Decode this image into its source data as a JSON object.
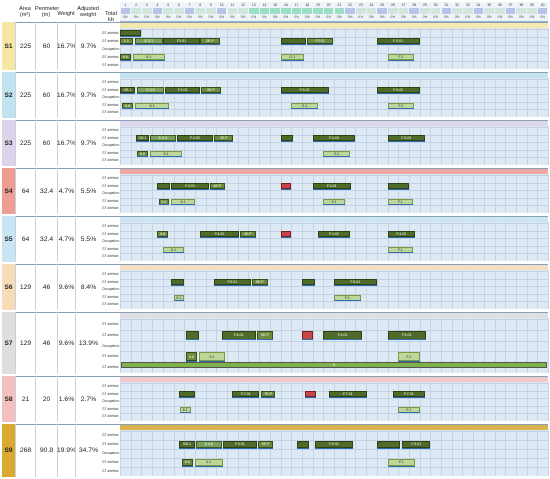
{
  "headers": {
    "area": "Area (m²)",
    "perimeter": "Perimeter (m)",
    "weight": "Weight",
    "adjusted_weight": "Adjusted weight",
    "total_kb": "Total kb"
  },
  "slots": [
    "1",
    "2",
    "3",
    "4",
    "5",
    "6",
    "7",
    "8",
    "9",
    "10",
    "11",
    "12",
    "13",
    "14",
    "15",
    "16",
    "17",
    "18",
    "19",
    "20",
    "21",
    "22",
    "23",
    "24",
    "25",
    "26",
    "27",
    "28",
    "29",
    "30",
    "31",
    "32",
    "33",
    "34",
    "35",
    "36",
    "37",
    "38",
    "39",
    "40"
  ],
  "row_labels": [
    "GT artefact",
    "GT artefact",
    "Occupation (m²)",
    "GT artefact",
    "GT artefact"
  ],
  "pct_label": "0%",
  "colors": {
    "s1": "#f6e7a3",
    "s2": "#bfe4ef",
    "s3": "#ddd3ea",
    "s4": "#ef9c92",
    "s5": "#c9e5f3",
    "s6": "#f8dcb6",
    "s7": "#dedede",
    "s8": "#f3c0bf",
    "s9": "#d9a930",
    "grid": "#dde9f5",
    "header": "#cfe7dd",
    "dark_green": "#4e6b27",
    "olive": "#6e8b3d",
    "blue": "#2f6fb0"
  },
  "sections": [
    {
      "id": "S1",
      "area": "225",
      "perimeter": "60",
      "weight": "16.7%",
      "adjusted": "9.7%"
    },
    {
      "id": "S2",
      "area": "225",
      "perimeter": "60",
      "weight": "16.7%",
      "adjusted": "9.7%"
    },
    {
      "id": "S3",
      "area": "225",
      "perimeter": "60",
      "weight": "16.7%",
      "adjusted": "9.7%"
    },
    {
      "id": "S4",
      "area": "64",
      "perimeter": "32.4",
      "weight": "4.7%",
      "adjusted": "5.5%"
    },
    {
      "id": "S5",
      "area": "64",
      "perimeter": "32.4",
      "weight": "4.7%",
      "adjusted": "5.5%"
    },
    {
      "id": "S6",
      "area": "129",
      "perimeter": "46",
      "weight": "9.6%",
      "adjusted": "8.4%"
    },
    {
      "id": "S7",
      "area": "129",
      "perimeter": "46",
      "weight": "9.6%",
      "adjusted": "13.9%"
    },
    {
      "id": "S8",
      "area": "21",
      "perimeter": "20",
      "weight": "1.6%",
      "adjusted": "2.7%"
    },
    {
      "id": "S9",
      "area": "268",
      "perimeter": "90.8",
      "weight": "19.9%",
      "adjusted": "34.7%"
    }
  ],
  "blocks": [
    {
      "s": 0,
      "r": 0,
      "c": 1,
      "w": 2,
      "t": "",
      "k": "dark"
    },
    {
      "s": 0,
      "r": 1,
      "c": 1,
      "w": 1.2,
      "t": "1.1",
      "k": "olive"
    },
    {
      "s": 0,
      "r": 1,
      "c": 2.4,
      "w": 2.6,
      "t": "E.3.1",
      "k": "mid"
    },
    {
      "s": 0,
      "r": 1,
      "c": 5,
      "w": 3.5,
      "t": "F3.01",
      "k": "dark"
    },
    {
      "s": 0,
      "r": 1,
      "c": 8.5,
      "w": 1.8,
      "t": "2E.P",
      "k": "olive"
    },
    {
      "s": 0,
      "r": 3,
      "c": 1,
      "w": 1,
      "t": "6.6",
      "k": "olive"
    },
    {
      "s": 0,
      "r": 3,
      "c": 2.2,
      "w": 3,
      "t": "6.1",
      "k": "light"
    },
    {
      "s": 0,
      "r": 1,
      "c": 16,
      "w": 2.4,
      "t": "",
      "k": "dark"
    },
    {
      "s": 0,
      "r": 1,
      "c": 18.5,
      "w": 2.4,
      "t": "F3.01",
      "k": "olive"
    },
    {
      "s": 0,
      "r": 3,
      "c": 16,
      "w": 2.2,
      "t": "G.1",
      "k": "light"
    },
    {
      "s": 0,
      "r": 1,
      "c": 25,
      "w": 4,
      "t": "F.3.01",
      "k": "dark"
    },
    {
      "s": 0,
      "r": 3,
      "c": 26,
      "w": 2.5,
      "t": "F.1",
      "k": "light"
    },
    {
      "s": 1,
      "r": 1,
      "c": 1,
      "w": 1.4,
      "t": "GB.1",
      "k": "dark"
    },
    {
      "s": 1,
      "r": 1,
      "c": 2.6,
      "w": 2.5,
      "t": "E.3.2",
      "k": "mid"
    },
    {
      "s": 1,
      "r": 1,
      "c": 5.2,
      "w": 3.3,
      "t": "F.3.02",
      "k": "dark"
    },
    {
      "s": 1,
      "r": 1,
      "c": 8.6,
      "w": 1.8,
      "t": "3E.P",
      "k": "olive"
    },
    {
      "s": 1,
      "r": 3,
      "c": 1.2,
      "w": 1,
      "t": "6.6",
      "k": "olive"
    },
    {
      "s": 1,
      "r": 3,
      "c": 2.4,
      "w": 3.2,
      "t": "6.1",
      "k": "light"
    },
    {
      "s": 1,
      "r": 1,
      "c": 16,
      "w": 4.5,
      "t": "F.3.02",
      "k": "dark"
    },
    {
      "s": 1,
      "r": 3,
      "c": 17,
      "w": 2.5,
      "t": "G.1",
      "k": "light"
    },
    {
      "s": 1,
      "r": 1,
      "c": 25,
      "w": 4,
      "t": "F.3.02",
      "k": "dark"
    },
    {
      "s": 1,
      "r": 3,
      "c": 26,
      "w": 2.5,
      "t": "F.1",
      "k": "light"
    },
    {
      "s": 2,
      "r": 1,
      "c": 2.5,
      "w": 1.2,
      "t": "GB.1",
      "k": "dark"
    },
    {
      "s": 2,
      "r": 1,
      "c": 3.8,
      "w": 2.4,
      "t": "E.3.3",
      "k": "mid"
    },
    {
      "s": 2,
      "r": 1,
      "c": 6.3,
      "w": 3.4,
      "t": "F.3.03",
      "k": "dark"
    },
    {
      "s": 2,
      "r": 1,
      "c": 9.8,
      "w": 1.8,
      "t": "3E.P",
      "k": "olive"
    },
    {
      "s": 2,
      "r": 3,
      "c": 2.6,
      "w": 1,
      "t": "6.6",
      "k": "olive"
    },
    {
      "s": 2,
      "r": 3,
      "c": 3.8,
      "w": 3,
      "t": "6.1",
      "k": "light"
    },
    {
      "s": 2,
      "r": 1,
      "c": 16,
      "w": 1.2,
      "t": "",
      "k": "dark"
    },
    {
      "s": 2,
      "r": 1,
      "c": 19,
      "w": 4,
      "t": "F.3.03",
      "k": "dark"
    },
    {
      "s": 2,
      "r": 3,
      "c": 20,
      "w": 2.5,
      "t": "G.1",
      "k": "light"
    },
    {
      "s": 2,
      "r": 1,
      "c": 26,
      "w": 3.5,
      "t": "F.3.03",
      "k": "dark"
    },
    {
      "s": 3,
      "r": 1,
      "c": 4.5,
      "w": 1.2,
      "t": "",
      "k": "dark"
    },
    {
      "s": 3,
      "r": 1,
      "c": 5.8,
      "w": 3.5,
      "t": "F.4.01",
      "k": "dark"
    },
    {
      "s": 3,
      "r": 1,
      "c": 9.4,
      "w": 1.4,
      "t": "4E.P",
      "k": "olive"
    },
    {
      "s": 3,
      "r": 3,
      "c": 4.6,
      "w": 1,
      "t": "6.6",
      "k": "olive"
    },
    {
      "s": 3,
      "r": 3,
      "c": 5.8,
      "w": 2.2,
      "t": "6.1",
      "k": "light"
    },
    {
      "s": 3,
      "r": 1,
      "c": 16,
      "w": 1,
      "t": "",
      "k": "red"
    },
    {
      "s": 3,
      "r": 1,
      "c": 19,
      "w": 3.6,
      "t": "F.4.01",
      "k": "dark"
    },
    {
      "s": 3,
      "r": 3,
      "c": 20,
      "w": 2,
      "t": "F.1",
      "k": "light"
    },
    {
      "s": 3,
      "r": 1,
      "c": 26,
      "w": 2,
      "t": "",
      "k": "dark"
    },
    {
      "s": 3,
      "r": 3,
      "c": 26,
      "w": 2.4,
      "t": "F.1",
      "k": "light"
    },
    {
      "s": 4,
      "r": 1,
      "c": 4.5,
      "w": 1,
      "t": "6.6",
      "k": "olive"
    },
    {
      "s": 4,
      "r": 1,
      "c": 8.5,
      "w": 3.6,
      "t": "F.4.02",
      "k": "dark"
    },
    {
      "s": 4,
      "r": 1,
      "c": 12.2,
      "w": 1.5,
      "t": "4E.P",
      "k": "olive"
    },
    {
      "s": 4,
      "r": 3,
      "c": 5,
      "w": 2,
      "t": "6.1",
      "k": "light"
    },
    {
      "s": 4,
      "r": 1,
      "c": 16,
      "w": 1,
      "t": "",
      "k": "red"
    },
    {
      "s": 4,
      "r": 1,
      "c": 19.5,
      "w": 3,
      "t": "F.4.02",
      "k": "dark"
    },
    {
      "s": 4,
      "r": 1,
      "c": 26,
      "w": 2.6,
      "t": "F.4.02",
      "k": "dark"
    },
    {
      "s": 4,
      "r": 3,
      "c": 26,
      "w": 2.4,
      "t": "F.1",
      "k": "light"
    },
    {
      "s": 5,
      "r": 1,
      "c": 5.8,
      "w": 1.2,
      "t": "",
      "k": "dark"
    },
    {
      "s": 5,
      "r": 1,
      "c": 9.8,
      "w": 3.4,
      "t": "F.5.01",
      "k": "dark"
    },
    {
      "s": 5,
      "r": 1,
      "c": 13.3,
      "w": 1.5,
      "t": "5E.P",
      "k": "olive"
    },
    {
      "s": 5,
      "r": 3,
      "c": 6,
      "w": 1,
      "t": "6.1",
      "k": "light"
    },
    {
      "s": 5,
      "r": 1,
      "c": 18,
      "w": 1.2,
      "t": "",
      "k": "dark"
    },
    {
      "s": 5,
      "r": 1,
      "c": 21,
      "w": 4,
      "t": "F.5.01",
      "k": "dark"
    },
    {
      "s": 5,
      "r": 3,
      "c": 21,
      "w": 2.5,
      "t": "F.1",
      "k": "light"
    },
    {
      "s": 6,
      "r": 1,
      "c": 7.2,
      "w": 1.2,
      "t": "",
      "k": "dark"
    },
    {
      "s": 6,
      "r": 1,
      "c": 10.5,
      "w": 3.2,
      "t": "F.6.01",
      "k": "dark"
    },
    {
      "s": 6,
      "r": 1,
      "c": 13.8,
      "w": 1.5,
      "t": "6E.P",
      "k": "olive"
    },
    {
      "s": 6,
      "r": 3,
      "c": 7.2,
      "w": 1,
      "t": "6.6",
      "k": "olive"
    },
    {
      "s": 6,
      "r": 3,
      "c": 8.4,
      "w": 2.4,
      "t": "6.1",
      "k": "light"
    },
    {
      "s": 6,
      "r": 1,
      "c": 18,
      "w": 1,
      "t": "",
      "k": "red"
    },
    {
      "s": 6,
      "r": 1,
      "c": 20,
      "w": 3.6,
      "t": "F.6.01",
      "k": "dark"
    },
    {
      "s": 6,
      "r": 1,
      "c": 26,
      "w": 3.6,
      "t": "F.6.01",
      "k": "dark"
    },
    {
      "s": 6,
      "r": 3,
      "c": 27,
      "w": 2,
      "t": "F.1",
      "k": "light"
    },
    {
      "s": 7,
      "r": 1,
      "c": 6.5,
      "w": 1.5,
      "t": "",
      "k": "dark"
    },
    {
      "s": 7,
      "r": 1,
      "c": 11.5,
      "w": 2.5,
      "t": "F.7.01",
      "k": "dark"
    },
    {
      "s": 7,
      "r": 1,
      "c": 14.2,
      "w": 1.3,
      "t": "7E.P",
      "k": "olive"
    },
    {
      "s": 7,
      "r": 3,
      "c": 6.6,
      "w": 1,
      "t": "6.1",
      "k": "light"
    },
    {
      "s": 7,
      "r": 1,
      "c": 18.3,
      "w": 1,
      "t": "",
      "k": "red"
    },
    {
      "s": 7,
      "r": 1,
      "c": 20.5,
      "w": 3.6,
      "t": "F.7.01",
      "k": "dark"
    },
    {
      "s": 7,
      "r": 1,
      "c": 26.5,
      "w": 3,
      "t": "F.7.01",
      "k": "dark"
    },
    {
      "s": 7,
      "r": 3,
      "c": 27,
      "w": 2,
      "t": "F.1",
      "k": "light"
    },
    {
      "s": 8,
      "r": 1,
      "c": 6.5,
      "w": 1.5,
      "t": "GB.1",
      "k": "dark"
    },
    {
      "s": 8,
      "r": 1,
      "c": 8.1,
      "w": 2.4,
      "t": "E.3.6",
      "k": "mid"
    },
    {
      "s": 8,
      "r": 1,
      "c": 10.6,
      "w": 3.2,
      "t": "F.3.01",
      "k": "dark"
    },
    {
      "s": 8,
      "r": 1,
      "c": 13.9,
      "w": 1.4,
      "t": "9E.P",
      "k": "olive"
    },
    {
      "s": 8,
      "r": 3,
      "c": 6.8,
      "w": 1,
      "t": "6.6",
      "k": "olive"
    },
    {
      "s": 8,
      "r": 3,
      "c": 8,
      "w": 2.6,
      "t": "6.1",
      "k": "light"
    },
    {
      "s": 8,
      "r": 1,
      "c": 17.5,
      "w": 1.2,
      "t": "",
      "k": "dark"
    },
    {
      "s": 8,
      "r": 1,
      "c": 19.2,
      "w": 3.6,
      "t": "F.9.01",
      "k": "dark"
    },
    {
      "s": 8,
      "r": 1,
      "c": 25,
      "w": 2.2,
      "t": "",
      "k": "dark"
    },
    {
      "s": 8,
      "r": 1,
      "c": 27.4,
      "w": 2.6,
      "t": "F.3.01",
      "k": "dark"
    },
    {
      "s": 8,
      "r": 3,
      "c": 26,
      "w": 2.6,
      "t": "F.1",
      "k": "light"
    }
  ],
  "long_bar": {
    "section": 6,
    "label": "9"
  }
}
